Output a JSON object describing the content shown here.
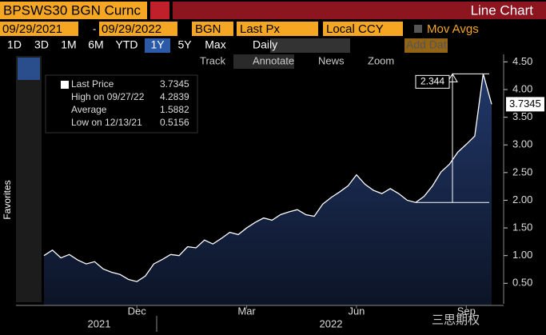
{
  "toolbar": {
    "ticker": "BPSWS30 BGN Curnc",
    "chart_type": "Line Chart",
    "start": "09/29/2021",
    "end": "09/29/2022",
    "source": "BGN",
    "field": "Last Px",
    "currency": "Local CCY",
    "mov_avgs": "Mov Avgs",
    "periods": [
      "1D",
      "3D",
      "1M",
      "6M",
      "YTD",
      "1Y",
      "5Y",
      "Max"
    ],
    "active_period": "1Y",
    "frequency": "Daily",
    "add_data": "Add Dat",
    "tools": [
      "Track",
      "Annotate",
      "News",
      "Zoom"
    ],
    "sidebar": "Favorites"
  },
  "chart_data": {
    "type": "line",
    "color": "#ffffff",
    "fill": "#1b2d55",
    "categories": [
      null,
      null,
      null,
      null,
      null,
      null,
      null,
      null,
      null,
      null,
      null,
      "Dec",
      null,
      null,
      null,
      null,
      null,
      null,
      null,
      null,
      null,
      null,
      null,
      null,
      "Mar",
      null,
      null,
      null,
      null,
      null,
      null,
      null,
      null,
      null,
      null,
      null,
      null,
      "Jun",
      null,
      null,
      null,
      null,
      null,
      null,
      null,
      null,
      null,
      null,
      null,
      null,
      "Sep",
      null,
      null,
      null
    ],
    "year_labels": [
      "2021",
      "2022"
    ],
    "series": [
      {
        "name": "Last Price",
        "values": [
          1.0,
          1.1,
          0.96,
          1.02,
          0.92,
          0.85,
          0.89,
          0.76,
          0.7,
          0.66,
          0.57,
          0.53,
          0.63,
          0.85,
          0.93,
          1.02,
          1.0,
          1.16,
          1.14,
          1.28,
          1.21,
          1.31,
          1.42,
          1.38,
          1.5,
          1.6,
          1.68,
          1.64,
          1.74,
          1.79,
          1.83,
          1.74,
          1.71,
          1.93,
          2.05,
          2.15,
          2.26,
          2.46,
          2.29,
          2.18,
          2.12,
          2.21,
          2.12,
          2.0,
          1.96,
          2.07,
          2.26,
          2.51,
          2.65,
          2.87,
          3.01,
          3.16,
          4.2839,
          3.7345
        ]
      }
    ],
    "legend": [
      {
        "label": "Last Price",
        "value": 3.7345
      },
      {
        "label": "High on 09/27/22",
        "value": 4.2839
      },
      {
        "label": "Average",
        "value": 1.5882
      },
      {
        "label": "Low on 12/13/21",
        "value": 0.5156
      }
    ],
    "annotation": "2.344",
    "last_value": 3.7345,
    "ylim": [
      0.1,
      4.65
    ],
    "yticks": [
      {
        "value": 0.5,
        "label": "0.50"
      },
      {
        "value": 1,
        "label": "1.00"
      },
      {
        "value": 1.5,
        "label": "1.50"
      },
      {
        "value": 2,
        "label": "2.00"
      },
      {
        "value": 2.5,
        "label": "2.50"
      },
      {
        "value": 3,
        "label": "3.00"
      },
      {
        "value": 3.5,
        "label": "3.50"
      },
      {
        "value": 4,
        "label": "4.00"
      },
      {
        "value": 4.5,
        "label": "4.50"
      }
    ]
  },
  "watermark": "三思期权"
}
